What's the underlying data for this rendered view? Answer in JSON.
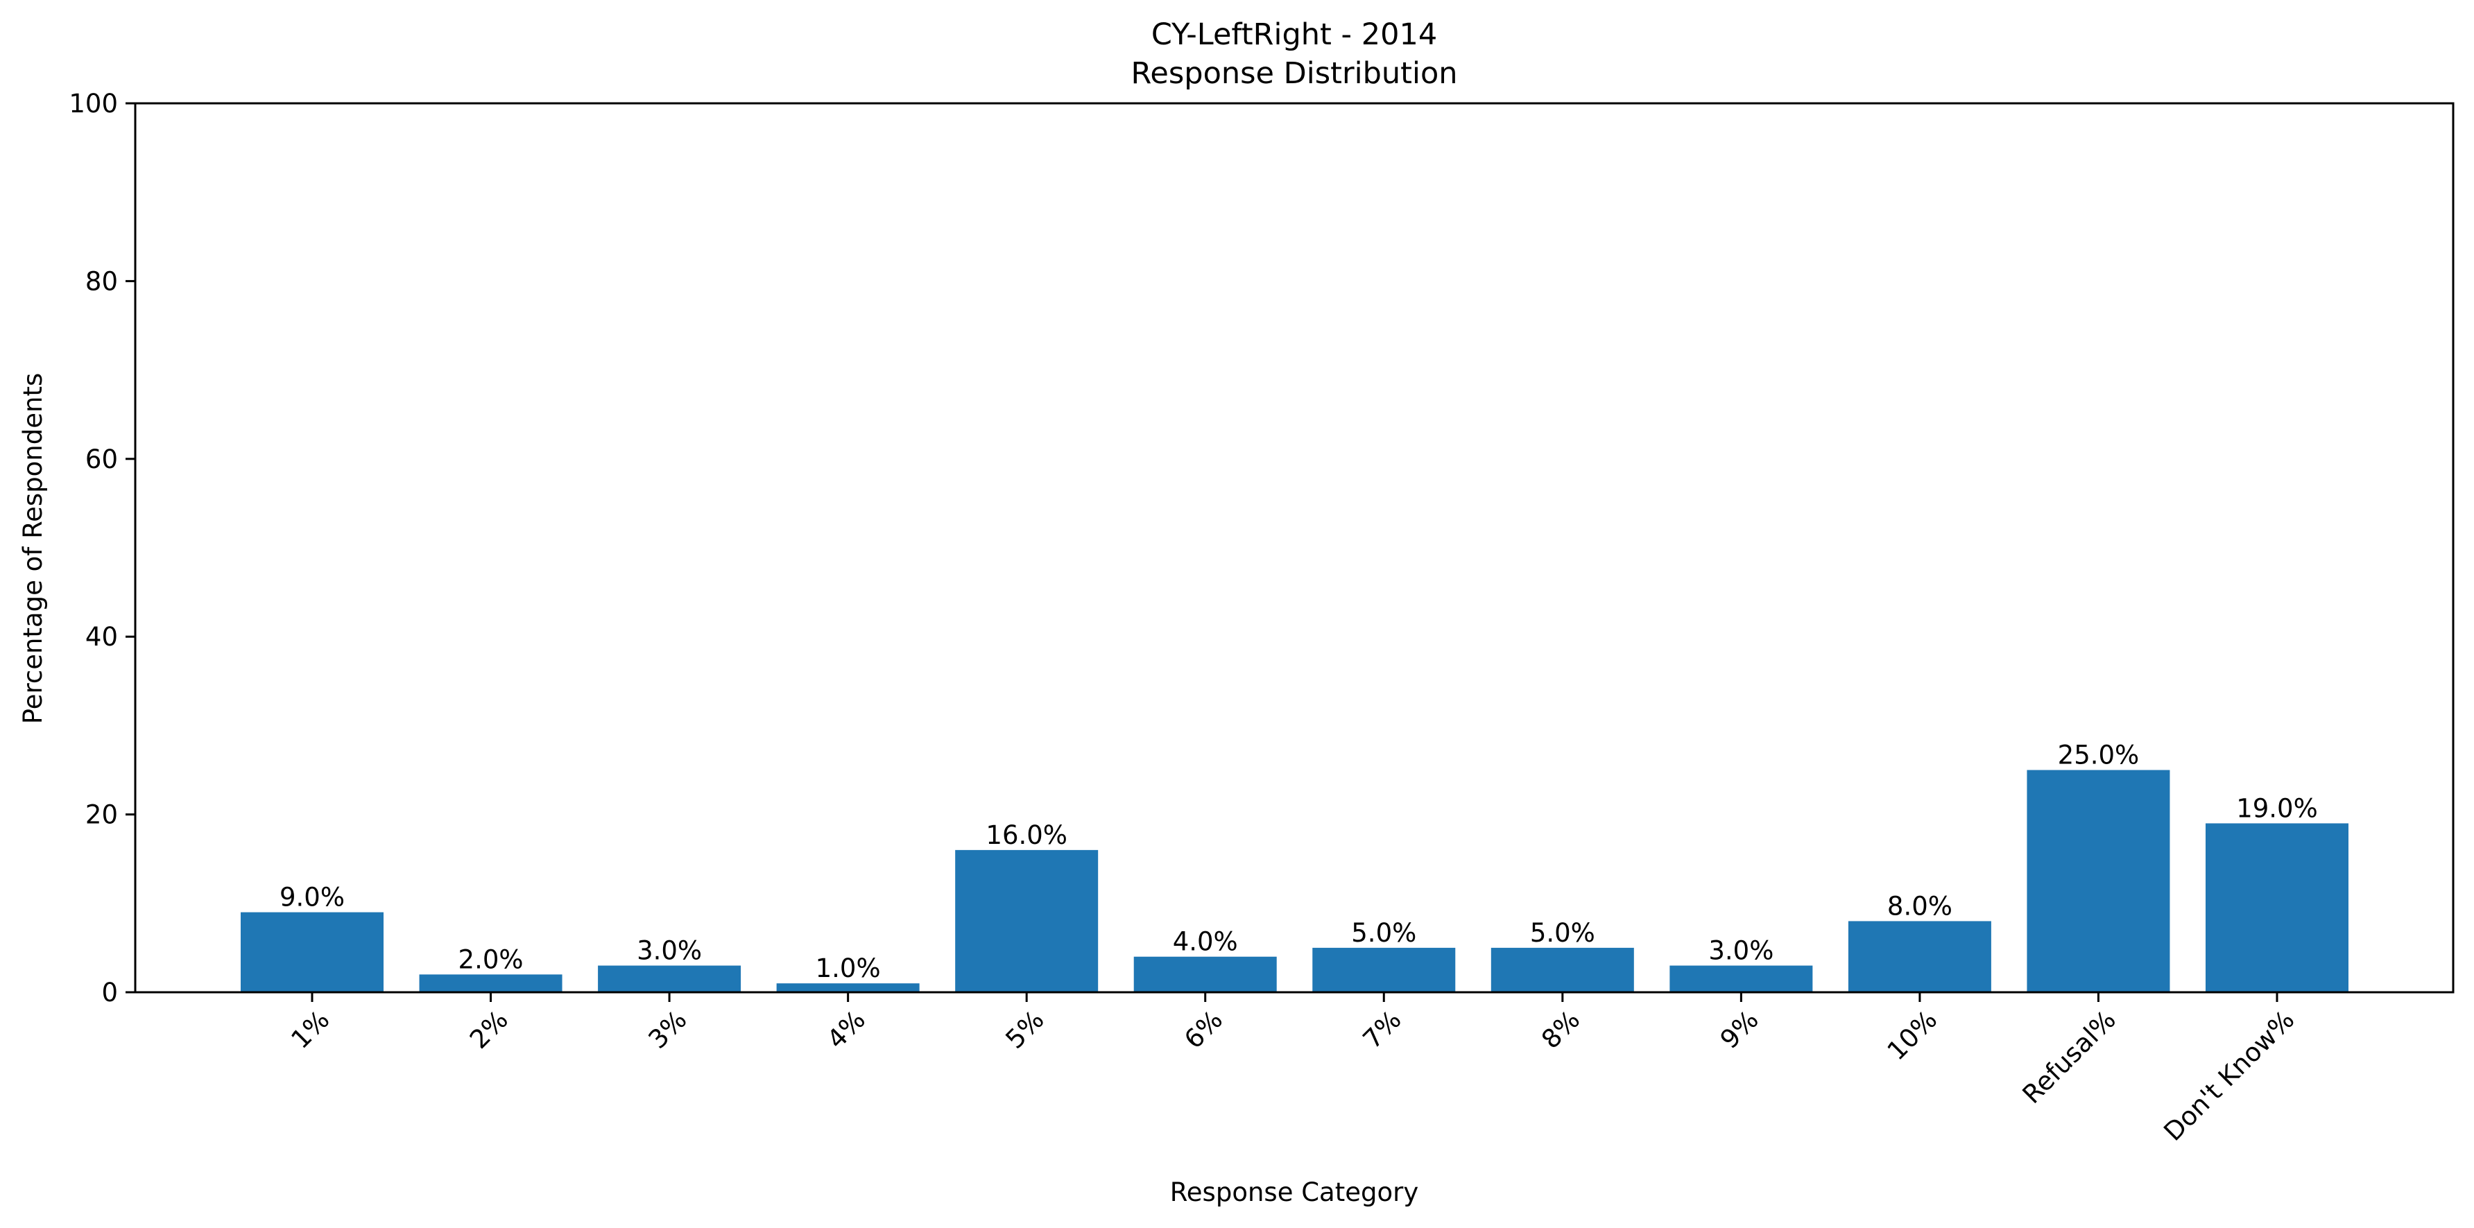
{
  "chart_data": {
    "type": "bar",
    "title": "CY-LeftRight - 2014",
    "subtitle": "Response Distribution",
    "xlabel": "Response Category",
    "ylabel": "Percentage of Respondents",
    "ylim": [
      0,
      100
    ],
    "yticks": [
      0,
      20,
      40,
      60,
      80,
      100
    ],
    "grid": false,
    "categories": [
      "1%",
      "2%",
      "3%",
      "4%",
      "5%",
      "6%",
      "7%",
      "8%",
      "9%",
      "10%",
      "Refusal%",
      "Don't Know%"
    ],
    "values": [
      9.0,
      2.0,
      3.0,
      1.0,
      16.0,
      4.0,
      5.0,
      5.0,
      3.0,
      8.0,
      25.0,
      19.0
    ],
    "data_labels": [
      "9.0%",
      "2.0%",
      "3.0%",
      "1.0%",
      "16.0%",
      "4.0%",
      "5.0%",
      "5.0%",
      "3.0%",
      "8.0%",
      "25.0%",
      "19.0%"
    ],
    "bar_color": "#1f77b4"
  }
}
